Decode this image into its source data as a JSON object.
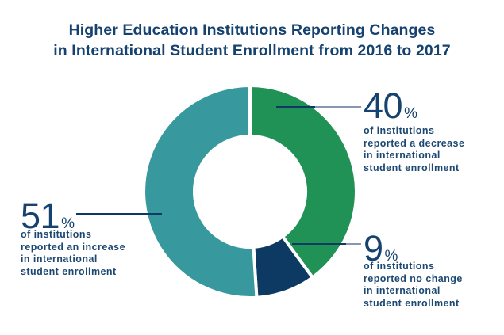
{
  "title": {
    "line1": "Higher Education Institutions Reporting Changes",
    "line2": "in International Student Enrollment from 2016 to 2017"
  },
  "callouts": {
    "decrease": {
      "number": "40",
      "percent_sign": "%",
      "lines": {
        "l1": "of institutions",
        "l2": "reported a decrease",
        "l3": "in international",
        "l4": "student enrollment"
      }
    },
    "no_change": {
      "number": "9",
      "percent_sign": "%",
      "lines": {
        "l1": "of institutions",
        "l2": "reported no change",
        "l3": "in international",
        "l4": "student enrollment"
      }
    },
    "increase": {
      "number": "51",
      "percent_sign": "%",
      "lines": {
        "l1": "of institutions",
        "l2": "reported an increase",
        "l3": "in international",
        "l4": "student enrollment"
      }
    }
  },
  "colors": {
    "title_navy": "#164270",
    "text_navy": "#1D4872",
    "leader_light": "#8699B1",
    "leader_dark": "#0D3A63"
  },
  "chart_data": {
    "type": "pie",
    "subtype": "donut",
    "title": "Higher Education Institutions Reporting Changes in International Student Enrollment from 2016 to 2017",
    "keys": [
      "decrease",
      "no-change",
      "increase"
    ],
    "categories": [
      "of institutions reported a decrease in international student enrollment",
      "of institutions reported no change in international student enrollment",
      "of institutions reported an increase in international student enrollment"
    ],
    "values": [
      40,
      9,
      51
    ],
    "unit": "%",
    "colors": [
      "#219255",
      "#0D3A63",
      "#37999E"
    ],
    "start_angle_deg": 0,
    "direction": "clockwise",
    "inner_radius_ratio": 0.52,
    "separator_color": "#FFFFFF",
    "legend_position": "callouts"
  }
}
